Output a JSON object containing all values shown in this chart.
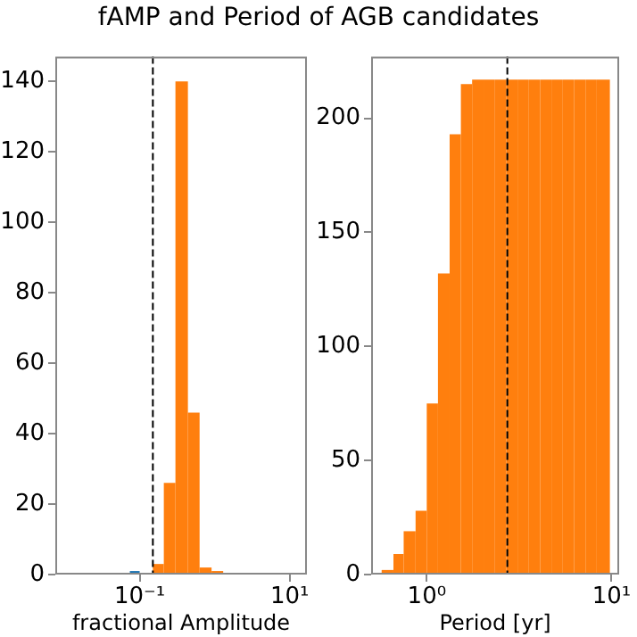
{
  "chart_data": [
    {
      "type": "histogram",
      "title": "fAMP and Period of AGB candidates",
      "xlabel": "fractional Amplitude",
      "log": "x",
      "xlim": [
        0.0075,
        17
      ],
      "xticks": [
        {
          "value": 0.1,
          "label": "10⁻¹"
        },
        {
          "value": 10,
          "label": "10¹"
        }
      ],
      "ylim": [
        0,
        147
      ],
      "yticks": [
        0,
        20,
        40,
        60,
        80,
        100,
        120,
        140
      ],
      "grid": false,
      "bins": [
        0.074,
        0.1,
        0.15,
        0.21,
        0.3,
        0.44,
        0.63,
        0.91,
        1.3
      ],
      "series": [
        {
          "color": "#1f77b4",
          "values": [
            1,
            null,
            null,
            null,
            null,
            null,
            null,
            null
          ]
        },
        {
          "color": "#ff7f0e",
          "values": [
            null,
            null,
            3,
            26,
            140,
            46,
            2,
            1
          ]
        }
      ],
      "ref_lines": [
        {
          "axis": "x",
          "value": 0.15,
          "color": "#000000",
          "line_style": "dashed"
        }
      ]
    },
    {
      "type": "histogram",
      "xlabel": "Period [yr]",
      "log": "x",
      "xlim": [
        0.5,
        11
      ],
      "xticks": [
        {
          "value": 1,
          "label": "10⁰"
        },
        {
          "value": 10,
          "label": "10¹"
        }
      ],
      "ylim": [
        0,
        227
      ],
      "yticks": [
        0,
        50,
        100,
        150,
        200
      ],
      "grid": false,
      "bins": [
        0.57,
        0.66,
        0.75,
        0.87,
        1.0,
        1.15,
        1.33,
        1.53,
        1.76,
        2.03,
        2.34,
        2.69,
        3.1,
        3.57,
        4.11,
        4.73,
        5.45,
        6.28,
        7.23,
        8.32,
        9.8
      ],
      "values": [
        2,
        9,
        19,
        28,
        75,
        132,
        193,
        215,
        217,
        217,
        217,
        217,
        217,
        217,
        217,
        217,
        217,
        217,
        217,
        217
      ],
      "color": "#ff7f0e",
      "ref_lines": [
        {
          "axis": "x",
          "value": 2.73,
          "color": "#000000",
          "line_style": "dashed"
        }
      ]
    }
  ]
}
